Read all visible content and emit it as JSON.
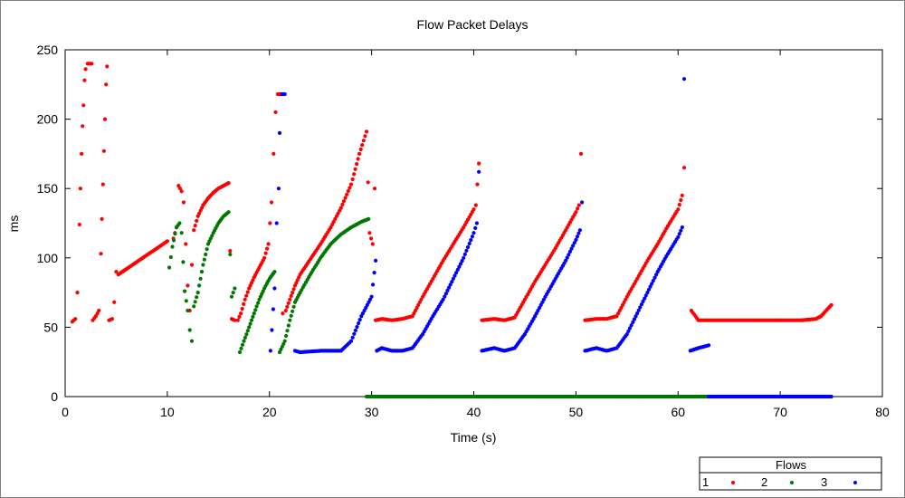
{
  "chart_data": {
    "type": "scatter",
    "title": "Flow Packet Delays",
    "xlabel": "Time (s)",
    "ylabel": "ms",
    "xlim": [
      0,
      80
    ],
    "ylim": [
      0,
      250
    ],
    "x_ticks": [
      0,
      10,
      20,
      30,
      40,
      50,
      60,
      70,
      80
    ],
    "y_ticks": [
      0,
      50,
      100,
      150,
      200,
      250
    ],
    "grid": false,
    "legend": {
      "title": "Flows",
      "placement": "bottom-right",
      "entries": [
        "1",
        "2",
        "3"
      ]
    },
    "series": [
      {
        "name": "1",
        "color": "#ff0000",
        "segments": [
          [
            [
              0.7,
              54
            ],
            [
              1.0,
              56
            ],
            [
              1.2,
              75
            ],
            [
              1.4,
              124
            ],
            [
              1.5,
              150
            ],
            [
              1.6,
              175
            ],
            [
              1.7,
              195
            ],
            [
              1.8,
              210
            ],
            [
              1.9,
              228
            ],
            [
              2.0,
              236
            ],
            [
              2.2,
              240
            ],
            [
              2.6,
              240
            ],
            [
              2.7,
              55
            ],
            [
              3.0,
              58
            ],
            [
              3.3,
              62
            ],
            [
              3.5,
              103
            ],
            [
              3.6,
              128
            ],
            [
              3.7,
              153
            ],
            [
              3.8,
              177
            ],
            [
              3.9,
              200
            ],
            [
              4.0,
              225
            ],
            [
              4.1,
              238
            ],
            [
              4.3,
              55
            ],
            [
              4.6,
              56
            ],
            [
              4.8,
              68
            ],
            [
              5.0,
              90
            ]
          ],
          [
            [
              5.2,
              88
            ],
            [
              6,
              92
            ],
            [
              7,
              97
            ],
            [
              8,
              102
            ],
            [
              9,
              107
            ],
            [
              10,
              112
            ]
          ],
          [
            [
              10.6,
              114
            ],
            [
              10.9,
              122
            ],
            [
              11.1,
              152
            ],
            [
              11.4,
              148
            ],
            [
              11.6,
              140
            ],
            [
              11.8,
              110
            ],
            [
              12.0,
              80
            ],
            [
              12.2,
              62
            ],
            [
              12.4,
              95
            ],
            [
              12.6,
              120
            ],
            [
              13.0,
              130
            ],
            [
              13.5,
              138
            ],
            [
              14.0,
              143
            ],
            [
              14.5,
              147
            ],
            [
              15.0,
              150
            ],
            [
              15.5,
              152
            ],
            [
              16.0,
              154
            ],
            [
              16.3,
              56
            ],
            [
              16.6,
              55
            ]
          ],
          [
            [
              16.9,
              55
            ],
            [
              17.2,
              60
            ],
            [
              17.6,
              70
            ],
            [
              18.0,
              78
            ],
            [
              18.5,
              86
            ],
            [
              19.0,
              93
            ],
            [
              19.5,
              100
            ],
            [
              19.9,
              110
            ],
            [
              20.2,
              140
            ],
            [
              20.4,
              175
            ],
            [
              20.6,
              205
            ],
            [
              20.8,
              218
            ],
            [
              21.2,
              218
            ],
            [
              21.3,
              60
            ]
          ],
          [
            [
              21.6,
              62
            ],
            [
              22,
              70
            ],
            [
              22.5,
              80
            ],
            [
              23,
              88
            ],
            [
              24,
              99
            ],
            [
              25,
              110
            ],
            [
              26,
              122
            ],
            [
              27,
              136
            ],
            [
              28,
              153
            ],
            [
              28.8,
              175
            ],
            [
              29.5,
              191
            ],
            [
              29.8,
              118
            ],
            [
              30.1,
              110
            ],
            [
              30.3,
              150
            ]
          ],
          [
            [
              30.4,
              55
            ],
            [
              31,
              56
            ],
            [
              32,
              55
            ],
            [
              33,
              56
            ],
            [
              34,
              58
            ],
            [
              35,
              72
            ],
            [
              36,
              85
            ],
            [
              37,
              98
            ],
            [
              38,
              110
            ],
            [
              39,
              122
            ],
            [
              40,
              135
            ],
            [
              40.2,
              138
            ],
            [
              40.5,
              168
            ]
          ],
          [
            [
              40.8,
              55
            ],
            [
              42,
              56
            ],
            [
              43,
              55
            ],
            [
              44,
              57
            ],
            [
              45,
              70
            ],
            [
              46,
              83
            ],
            [
              47,
              95
            ],
            [
              48,
              107
            ],
            [
              49,
              120
            ],
            [
              50,
              133
            ],
            [
              50.3,
              138
            ],
            [
              50.5,
              175
            ]
          ],
          [
            [
              50.9,
              55
            ],
            [
              52,
              56
            ],
            [
              53,
              56
            ],
            [
              54,
              58
            ],
            [
              55,
              72
            ],
            [
              56,
              85
            ],
            [
              57,
              98
            ],
            [
              58,
              110
            ],
            [
              59,
              123
            ],
            [
              60,
              135
            ],
            [
              60.4,
              145
            ],
            [
              60.6,
              165
            ]
          ],
          [
            [
              61.3,
              62
            ],
            [
              62,
              55
            ],
            [
              64,
              55
            ],
            [
              66,
              55
            ],
            [
              68,
              55
            ],
            [
              70,
              55
            ],
            [
              72,
              55
            ],
            [
              73.5,
              56
            ],
            [
              74,
              58
            ],
            [
              75,
              66
            ]
          ]
        ]
      },
      {
        "name": "2",
        "color": "#007800",
        "segments": [
          [
            [
              10.2,
              93
            ],
            [
              10.5,
              108
            ],
            [
              10.9,
              122
            ],
            [
              11.2,
              125
            ],
            [
              11.4,
              118
            ],
            [
              11.7,
              76
            ],
            [
              12.0,
              62
            ],
            [
              12.2,
              48
            ],
            [
              12.4,
              40
            ],
            [
              12.6,
              65
            ],
            [
              13.0,
              75
            ],
            [
              13.5,
              95
            ],
            [
              14,
              110
            ],
            [
              14.5,
              118
            ],
            [
              15,
              125
            ],
            [
              15.5,
              130
            ],
            [
              16.0,
              133
            ],
            [
              16.3,
              72
            ],
            [
              16.6,
              78
            ]
          ],
          [
            [
              17.1,
              32
            ],
            [
              17.5,
              40
            ],
            [
              18,
              50
            ],
            [
              18.5,
              60
            ],
            [
              19,
              70
            ],
            [
              19.5,
              78
            ],
            [
              20,
              85
            ],
            [
              20.5,
              90
            ]
          ],
          [
            [
              21.0,
              32
            ],
            [
              21.5,
              40
            ],
            [
              22,
              55
            ],
            [
              22.5,
              68
            ],
            [
              23,
              75
            ],
            [
              24,
              88
            ],
            [
              25,
              100
            ],
            [
              26,
              110
            ],
            [
              27,
              117
            ],
            [
              28,
              122
            ],
            [
              29,
              126
            ],
            [
              29.7,
              128
            ]
          ],
          [
            [
              29.5,
              0
            ],
            [
              35,
              0
            ],
            [
              40,
              0
            ],
            [
              45,
              0
            ],
            [
              50,
              0
            ],
            [
              55,
              0
            ],
            [
              60,
              0
            ],
            [
              63,
              0
            ]
          ]
        ]
      },
      {
        "name": "3",
        "color": "#0000ff",
        "segments": [
          [
            [
              20.1,
              33
            ],
            [
              20.5,
              78
            ],
            [
              20.7,
              125
            ],
            [
              20.9,
              150
            ],
            [
              21.0,
              190
            ],
            [
              21.2,
              218
            ],
            [
              21.5,
              218
            ]
          ],
          [
            [
              22.5,
              33
            ],
            [
              23,
              32
            ],
            [
              25,
              33
            ],
            [
              27,
              33
            ],
            [
              28,
              40
            ],
            [
              29,
              58
            ],
            [
              30,
              72
            ],
            [
              30.4,
              98
            ]
          ],
          [
            [
              30.5,
              33
            ],
            [
              31,
              35
            ],
            [
              32,
              33
            ],
            [
              33,
              33
            ],
            [
              34,
              35
            ],
            [
              35,
              45
            ],
            [
              36,
              58
            ],
            [
              37,
              70
            ],
            [
              38,
              85
            ],
            [
              39,
              100
            ],
            [
              40,
              118
            ],
            [
              40.3,
              125
            ],
            [
              40.5,
              162
            ]
          ],
          [
            [
              40.8,
              33
            ],
            [
              42,
              35
            ],
            [
              43,
              33
            ],
            [
              44,
              35
            ],
            [
              45,
              45
            ],
            [
              46,
              58
            ],
            [
              47,
              72
            ],
            [
              48,
              85
            ],
            [
              49,
              98
            ],
            [
              50,
              113
            ],
            [
              50.4,
              120
            ],
            [
              50.6,
              140
            ]
          ],
          [
            [
              50.9,
              33
            ],
            [
              52,
              35
            ],
            [
              53,
              33
            ],
            [
              54,
              35
            ],
            [
              55,
              45
            ],
            [
              56,
              60
            ],
            [
              57,
              75
            ],
            [
              58,
              90
            ],
            [
              59,
              103
            ],
            [
              60,
              115
            ],
            [
              60.4,
              122
            ],
            [
              60.6,
              229
            ]
          ],
          [
            [
              61.2,
              33
            ],
            [
              62,
              35
            ],
            [
              63,
              37
            ]
          ],
          [
            [
              63,
              0
            ],
            [
              65,
              0
            ],
            [
              70,
              0
            ],
            [
              75,
              0
            ]
          ]
        ]
      }
    ]
  }
}
